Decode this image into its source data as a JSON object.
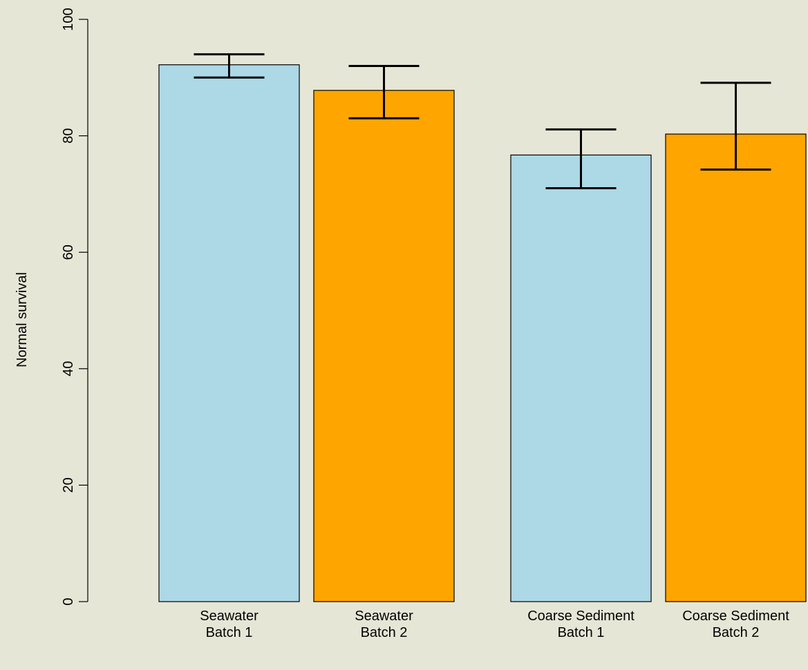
{
  "background_color": "#e5e6d6",
  "chart_data": {
    "type": "bar",
    "title": "",
    "xlabel": "",
    "ylabel": "Normal survival",
    "ylim": [
      0,
      100
    ],
    "yticks": [
      0,
      20,
      40,
      60,
      80,
      100
    ],
    "grid": false,
    "legend": "none",
    "categories": [
      [
        "Seawater",
        "Batch 1"
      ],
      [
        "Seawater",
        "Batch 2"
      ],
      [
        "Coarse Sediment",
        "Batch 1"
      ],
      [
        "Coarse Sediment",
        "Batch 2"
      ]
    ],
    "values": [
      92.2,
      87.8,
      76.7,
      80.3
    ],
    "error_low": [
      90.0,
      83.0,
      71.0,
      74.2
    ],
    "error_high": [
      94.0,
      92.0,
      81.1,
      89.1
    ],
    "colors": [
      "#add8e6",
      "#ffa500",
      "#add8e6",
      "#ffa500"
    ]
  }
}
